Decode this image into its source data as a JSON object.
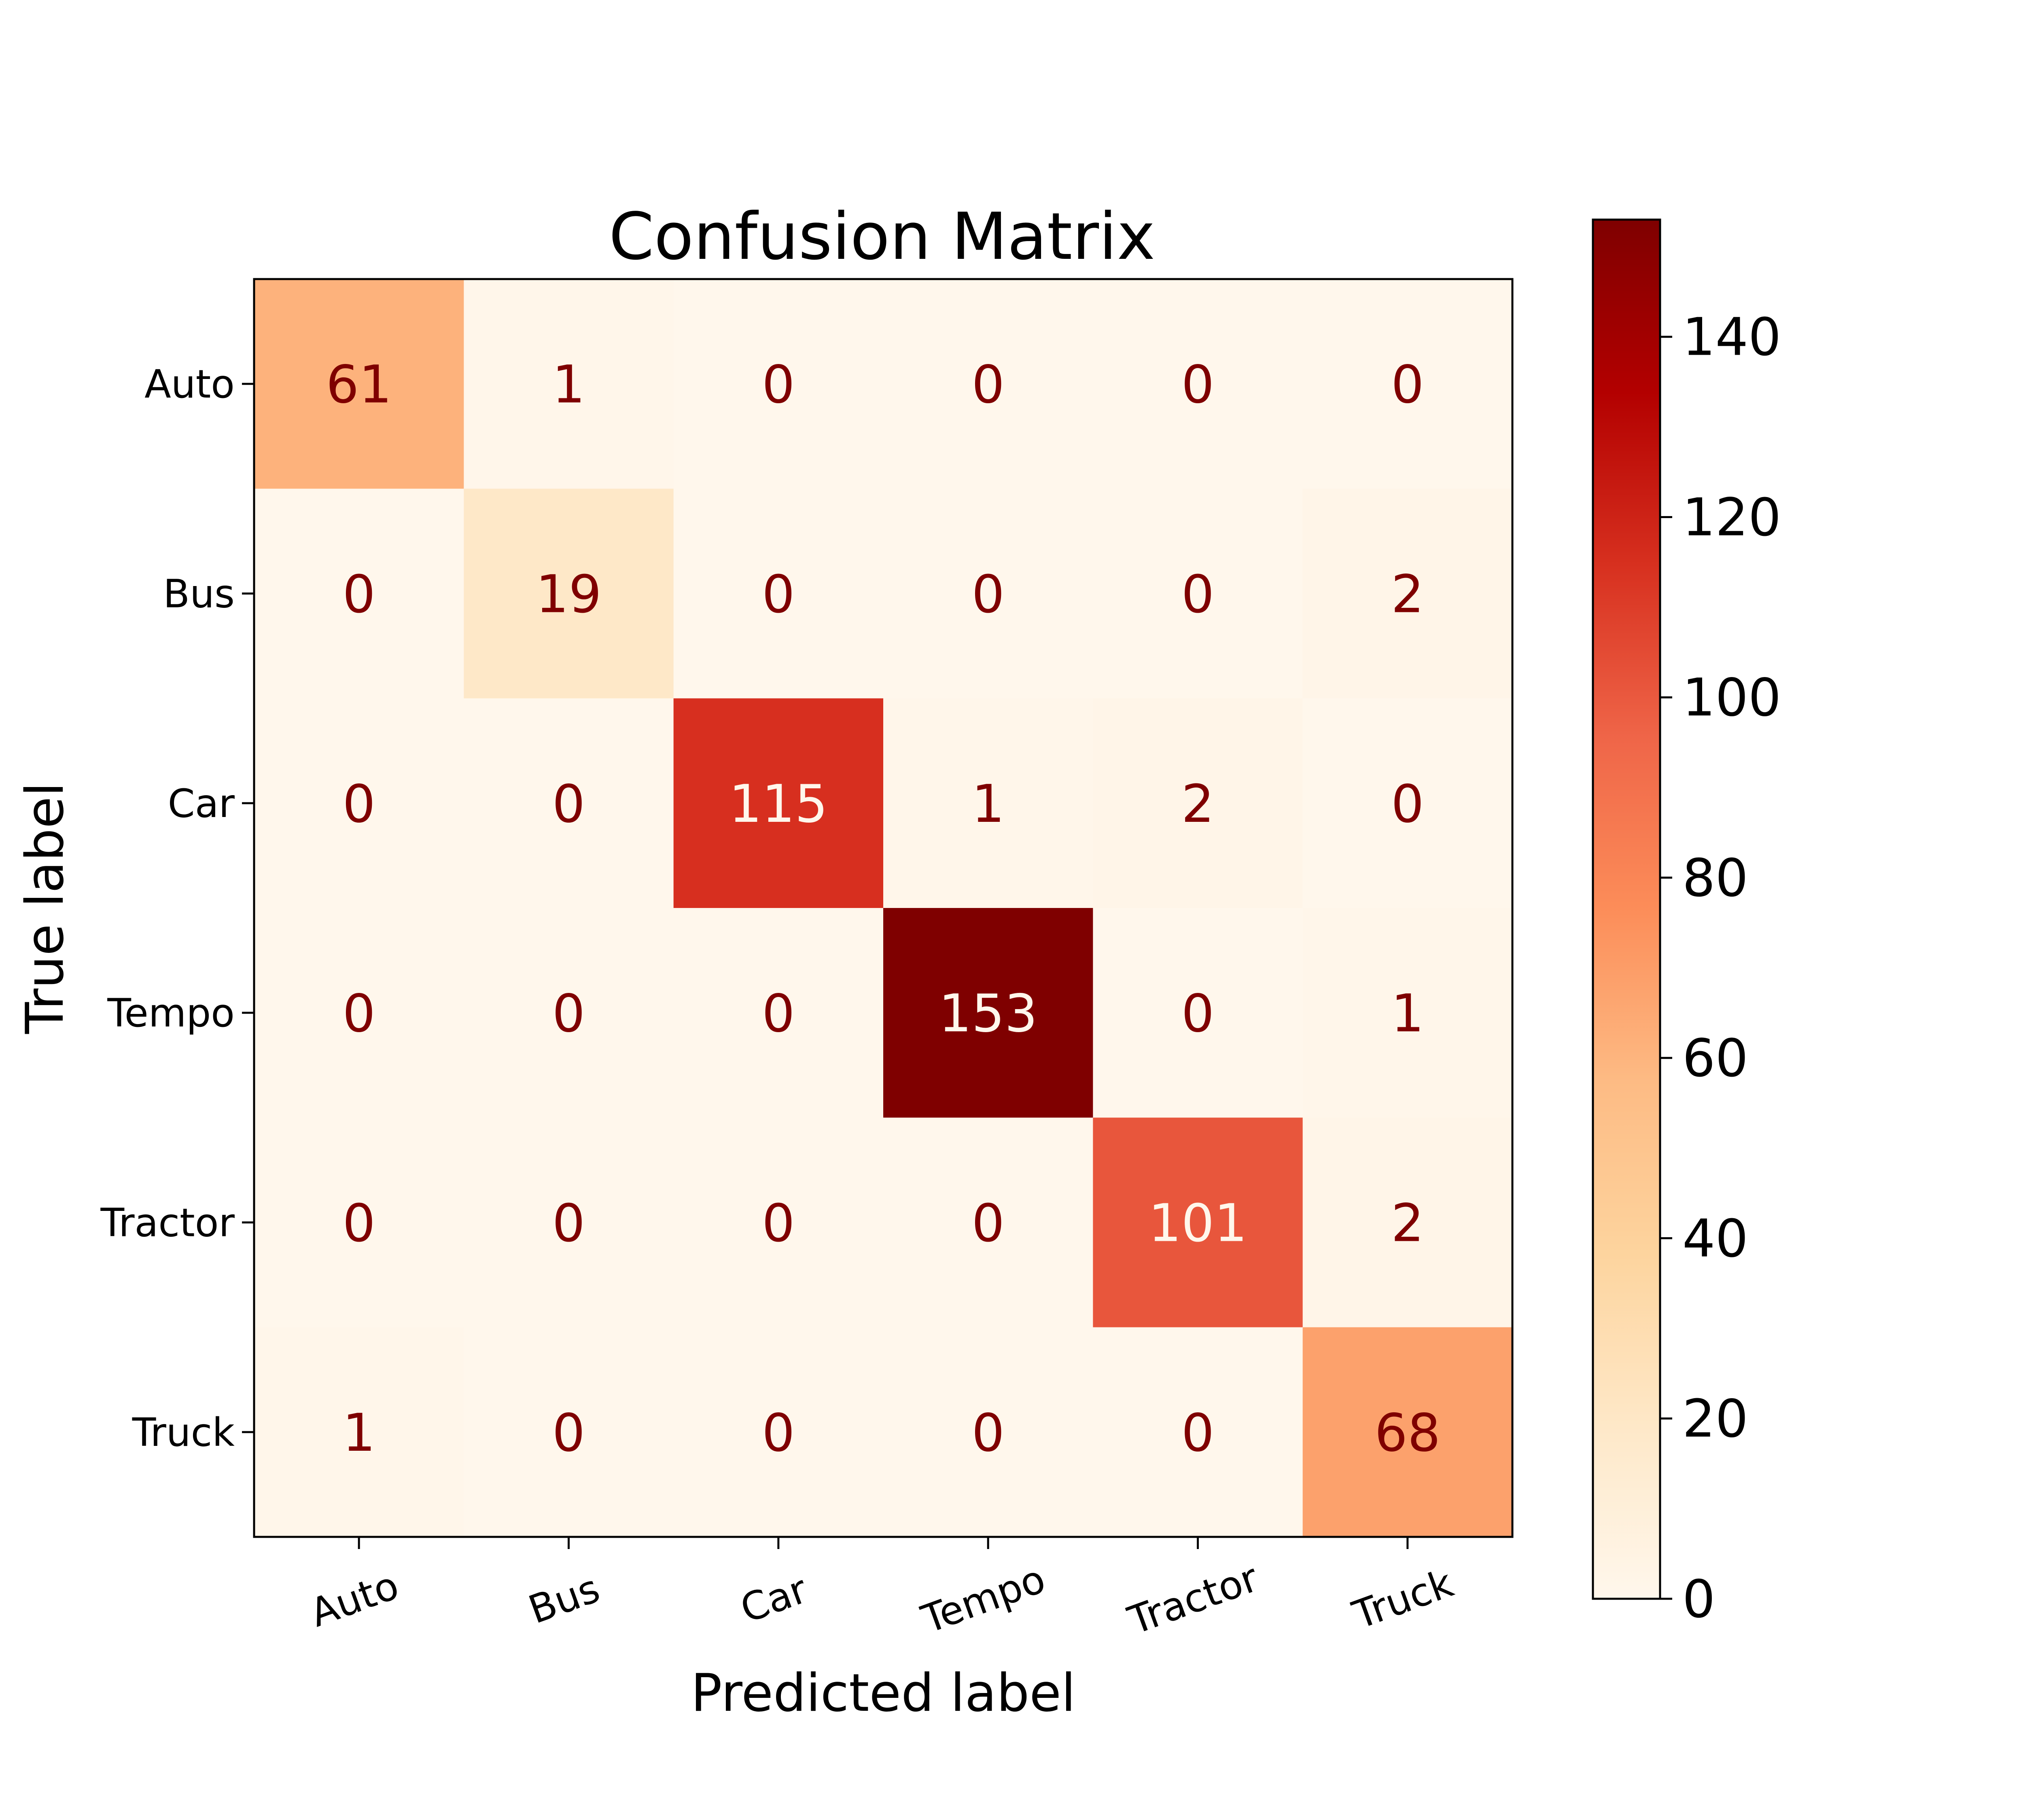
{
  "chart_data": {
    "type": "heatmap",
    "title": "Confusion Matrix",
    "xlabel": "Predicted label",
    "ylabel": "True label",
    "x_categories": [
      "Auto",
      "Bus",
      "Car",
      "Tempo",
      "Tractor",
      "Truck"
    ],
    "y_categories": [
      "Auto",
      "Bus",
      "Car",
      "Tempo",
      "Tractor",
      "Truck"
    ],
    "values": [
      [
        61,
        1,
        0,
        0,
        0,
        0
      ],
      [
        0,
        19,
        0,
        0,
        0,
        2
      ],
      [
        0,
        0,
        115,
        1,
        2,
        0
      ],
      [
        0,
        0,
        0,
        153,
        0,
        1
      ],
      [
        0,
        0,
        0,
        0,
        101,
        2
      ],
      [
        1,
        0,
        0,
        0,
        0,
        68
      ]
    ],
    "value_range": [
      0,
      153
    ],
    "colormap": "OrRd",
    "colorbar": {
      "ticks": [
        0,
        20,
        40,
        60,
        80,
        100,
        120,
        140
      ],
      "tick_labels": [
        "0",
        "20",
        "40",
        "60",
        "80",
        "100",
        "120",
        "140"
      ]
    },
    "grid": false,
    "colors": {
      "text_dark": "#7f0000",
      "text_light": "#fff7ec"
    }
  }
}
